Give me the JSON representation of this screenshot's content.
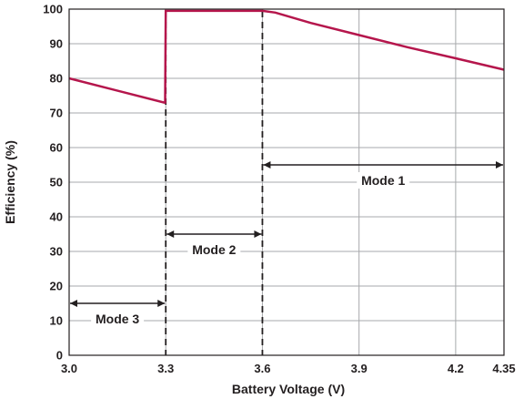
{
  "chart_data": {
    "type": "line",
    "xlabel": "Battery Voltage (V)",
    "ylabel": "Efficiency (%)",
    "xlim": [
      3.0,
      4.35
    ],
    "ylim": [
      0,
      100
    ],
    "x_ticks": [
      3.0,
      3.3,
      3.6,
      3.9,
      4.2,
      4.35
    ],
    "x_tick_labels": [
      "3.0",
      "3.3",
      "3.6",
      "3.9",
      "4.2",
      "4.35"
    ],
    "y_ticks": [
      0,
      10,
      20,
      30,
      40,
      50,
      60,
      70,
      80,
      90,
      100
    ],
    "y_tick_labels": [
      "0",
      "10",
      "20",
      "30",
      "40",
      "50",
      "60",
      "70",
      "80",
      "90",
      "100"
    ],
    "grid": true,
    "series": [
      {
        "color": "#b5164c",
        "x": [
          3.0,
          3.295,
          3.298,
          3.3,
          3.6,
          3.64,
          3.75,
          3.9,
          4.05,
          4.2,
          4.35
        ],
        "y": [
          80,
          73,
          73,
          99.5,
          99.5,
          99,
          96,
          92.5,
          89,
          85.8,
          82.5
        ]
      }
    ],
    "dividers": [
      3.3,
      3.6
    ],
    "annotations": [
      {
        "label": "Mode 1",
        "x_range": [
          3.6,
          4.35
        ],
        "y": 55
      },
      {
        "label": "Mode 2",
        "x_range": [
          3.3,
          3.6
        ],
        "y": 35
      },
      {
        "label": "Mode 3",
        "x_range": [
          3.0,
          3.3
        ],
        "y": 15
      }
    ]
  }
}
